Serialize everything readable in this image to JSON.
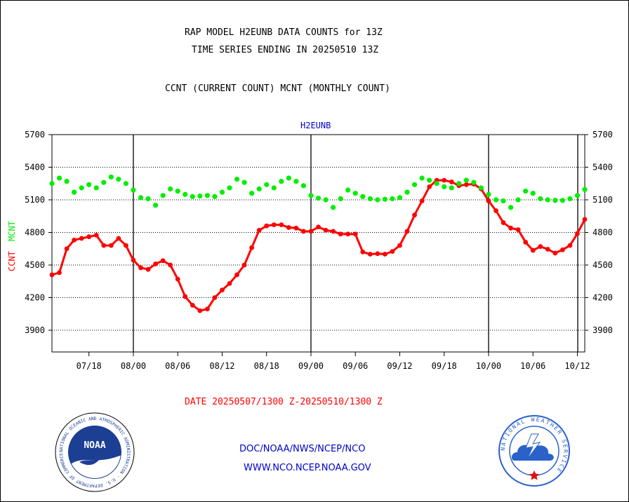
{
  "chart_data": {
    "type": "line",
    "title": "RAP MODEL H2EUNB DATA COUNTS for 13Z",
    "subtitle": "TIME SERIES ENDING IN 20250510 13Z",
    "description": "CCNT (CURRENT COUNT) MCNT (MONTHLY COUNT)",
    "series_header": "H2EUNB",
    "ylabel_ccnt": "CCNT",
    "ylabel_mcnt": "MCNT",
    "date_range": "DATE 20250507/1300 Z-20250510/1300 Z",
    "ylim": [
      3700,
      5700
    ],
    "yticks": [
      3900,
      4200,
      4500,
      4800,
      5100,
      5400,
      5700
    ],
    "grid": true,
    "x_tick_labels": [
      "07/18",
      "08/00",
      "08/06",
      "08/12",
      "08/18",
      "09/00",
      "09/06",
      "09/12",
      "09/18",
      "10/00",
      "10/06",
      "10/12"
    ],
    "x_tick_hours": [
      5,
      11,
      17,
      23,
      29,
      35,
      41,
      47,
      53,
      59,
      65,
      71
    ],
    "day_boundaries_hours": [
      11,
      35,
      59,
      83
    ],
    "x_range_hours": [
      0,
      72
    ],
    "series": [
      {
        "name": "CCNT",
        "color": "#ff0000",
        "values": [
          4410,
          4430,
          4650,
          4730,
          4745,
          4760,
          4775,
          4680,
          4680,
          4745,
          4680,
          4545,
          4475,
          4460,
          4510,
          4540,
          4500,
          4370,
          4210,
          4130,
          4080,
          4095,
          4200,
          4270,
          4330,
          4410,
          4500,
          4660,
          4820,
          4860,
          4870,
          4870,
          4845,
          4840,
          4810,
          4810,
          4850,
          4820,
          4810,
          4785,
          4785,
          4785,
          4620,
          4600,
          4605,
          4600,
          4625,
          4680,
          4810,
          4960,
          5090,
          5220,
          5280,
          5280,
          5265,
          5230,
          5240,
          5245,
          5200,
          5090,
          5000,
          4890,
          4840,
          4825,
          4710,
          4635,
          4670,
          4645,
          4610,
          4640,
          4680,
          4790,
          4920
        ]
      },
      {
        "name": "MCNT",
        "color": "#00ee00",
        "values": [
          5250,
          5300,
          5270,
          5170,
          5210,
          5240,
          5210,
          5260,
          5310,
          5290,
          5250,
          5190,
          5120,
          5110,
          5050,
          5140,
          5200,
          5180,
          5150,
          5130,
          5135,
          5140,
          5130,
          5170,
          5210,
          5290,
          5260,
          5160,
          5200,
          5240,
          5210,
          5270,
          5300,
          5270,
          5230,
          5140,
          5115,
          5100,
          5030,
          5110,
          5190,
          5160,
          5130,
          5110,
          5100,
          5105,
          5110,
          5120,
          5170,
          5240,
          5300,
          5280,
          5250,
          5220,
          5210,
          5250,
          5280,
          5260,
          5210,
          5150,
          5100,
          5090,
          5030,
          5100,
          5180,
          5160,
          5110,
          5100,
          5095,
          5095,
          5110,
          5140,
          5195
        ]
      }
    ]
  },
  "footer": {
    "line1": "DOC/NOAA/NWS/NCEP/NCO",
    "line2": "WWW.NCO.NCEP.NOAA.GOV"
  },
  "logos": {
    "noaa_text": "NOAA",
    "noaa_ring": "NATIONAL OCEANIC AND ATMOSPHERIC ADMINISTRATION · U.S. DEPARTMENT OF COMMERCE ·",
    "nws_ring": "NATIONAL WEATHER SERVICE"
  },
  "colors": {
    "title": "#000000",
    "footer": "#0000cc",
    "date": "#ff0000",
    "series_header": "#0000cc",
    "noaa_blue": "#1c3f94",
    "nws_blue": "#2a62c9"
  }
}
